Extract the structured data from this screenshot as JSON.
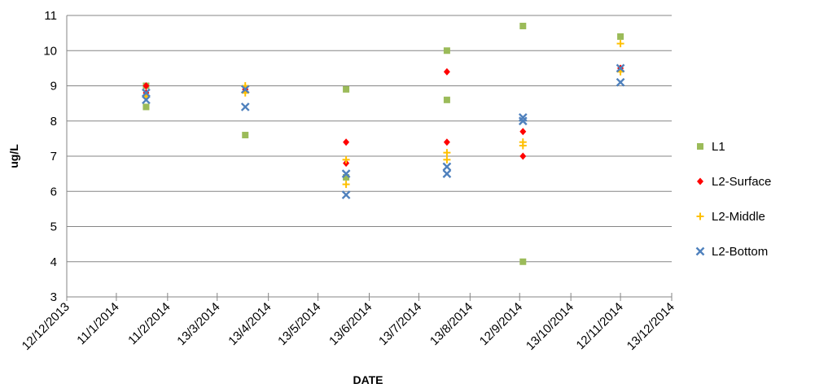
{
  "chart_data": {
    "type": "scatter",
    "xlabel": "DATE",
    "ylabel": "ug/L",
    "xlim": [
      "2013-12-12",
      "2014-12-13"
    ],
    "ylim": [
      3,
      11
    ],
    "grid": true,
    "legend_position": "right",
    "x_tick_labels": [
      "12/12/2013",
      "11/1/2014",
      "11/2/2014",
      "13/3/2014",
      "13/4/2014",
      "13/5/2014",
      "13/6/2014",
      "13/7/2014",
      "13/8/2014",
      "12/9/2014",
      "13/10/2014",
      "12/11/2014",
      "13/12/2014"
    ],
    "y_ticks": [
      3,
      4,
      5,
      6,
      7,
      8,
      9,
      10,
      11
    ],
    "series": [
      {
        "name": "L1",
        "marker": "square",
        "color": "#9BBB59",
        "points": [
          {
            "x": "2014-01-29",
            "y": 8.4
          },
          {
            "x": "2014-01-29",
            "y": 9.0
          },
          {
            "x": "2014-03-30",
            "y": 7.6
          },
          {
            "x": "2014-05-30",
            "y": 8.9
          },
          {
            "x": "2014-05-30",
            "y": 6.4
          },
          {
            "x": "2014-07-30",
            "y": 10.0
          },
          {
            "x": "2014-07-30",
            "y": 8.6
          },
          {
            "x": "2014-09-14",
            "y": 10.7
          },
          {
            "x": "2014-09-14",
            "y": 4.0
          },
          {
            "x": "2014-11-12",
            "y": 10.4
          }
        ]
      },
      {
        "name": "L2-Surface",
        "marker": "diamond",
        "color": "#FF0000",
        "points": [
          {
            "x": "2014-01-29",
            "y": 9.0
          },
          {
            "x": "2014-01-29",
            "y": 8.8
          },
          {
            "x": "2014-03-30",
            "y": 8.9
          },
          {
            "x": "2014-05-30",
            "y": 7.4
          },
          {
            "x": "2014-05-30",
            "y": 6.8
          },
          {
            "x": "2014-07-30",
            "y": 9.4
          },
          {
            "x": "2014-07-30",
            "y": 7.4
          },
          {
            "x": "2014-09-14",
            "y": 7.7
          },
          {
            "x": "2014-09-14",
            "y": 7.0
          },
          {
            "x": "2014-11-12",
            "y": 9.5
          }
        ]
      },
      {
        "name": "L2-Middle",
        "marker": "plus",
        "color": "#FFC000",
        "points": [
          {
            "x": "2014-01-29",
            "y": 8.7
          },
          {
            "x": "2014-03-30",
            "y": 9.0
          },
          {
            "x": "2014-03-30",
            "y": 8.8
          },
          {
            "x": "2014-05-30",
            "y": 6.9
          },
          {
            "x": "2014-05-30",
            "y": 6.2
          },
          {
            "x": "2014-07-30",
            "y": 7.1
          },
          {
            "x": "2014-07-30",
            "y": 6.9
          },
          {
            "x": "2014-09-14",
            "y": 7.4
          },
          {
            "x": "2014-09-14",
            "y": 7.3
          },
          {
            "x": "2014-11-12",
            "y": 10.2
          },
          {
            "x": "2014-11-12",
            "y": 9.4
          }
        ]
      },
      {
        "name": "L2-Bottom",
        "marker": "x",
        "color": "#4F81BD",
        "points": [
          {
            "x": "2014-01-29",
            "y": 8.8
          },
          {
            "x": "2014-01-29",
            "y": 8.6
          },
          {
            "x": "2014-03-30",
            "y": 8.9
          },
          {
            "x": "2014-03-30",
            "y": 8.4
          },
          {
            "x": "2014-05-30",
            "y": 6.5
          },
          {
            "x": "2014-05-30",
            "y": 5.9
          },
          {
            "x": "2014-07-30",
            "y": 6.7
          },
          {
            "x": "2014-07-30",
            "y": 6.5
          },
          {
            "x": "2014-09-14",
            "y": 8.1
          },
          {
            "x": "2014-09-14",
            "y": 8.0
          },
          {
            "x": "2014-11-12",
            "y": 9.5
          },
          {
            "x": "2014-11-12",
            "y": 9.1
          }
        ]
      }
    ]
  }
}
